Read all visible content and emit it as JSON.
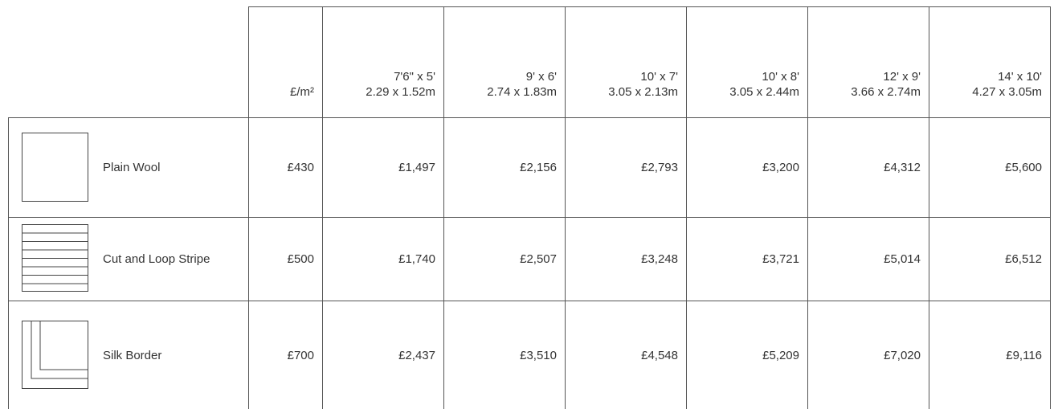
{
  "table": {
    "header": {
      "unit": "£/m²",
      "sizes": [
        {
          "imperial": "7'6\" x 5'",
          "metric": "2.29 x 1.52m"
        },
        {
          "imperial": "9' x 6'",
          "metric": "2.74 x 1.83m"
        },
        {
          "imperial": "10' x 7'",
          "metric": "3.05 x 2.13m"
        },
        {
          "imperial": "10' x 8'",
          "metric": "3.05 x 2.44m"
        },
        {
          "imperial": "12' x 9'",
          "metric": "3.66 x 2.74m"
        },
        {
          "imperial": "14' x 10'",
          "metric": "4.27 x 3.05m"
        }
      ]
    },
    "rows": [
      {
        "name": "Plain Wool",
        "values": [
          "£430",
          "£1,497",
          "£2,156",
          "£2,793",
          "£3,200",
          "£4,312",
          "£5,600"
        ]
      },
      {
        "name": "Cut and Loop Stripe",
        "values": [
          "£500",
          "£1,740",
          "£2,507",
          "£3,248",
          "£3,721",
          "£5,014",
          "£6,512"
        ]
      },
      {
        "name": "Silk Border",
        "values": [
          "£700",
          "£2,437",
          "£3,510",
          "£4,548",
          "£5,209",
          "£7,020",
          "£9,116"
        ]
      }
    ]
  }
}
